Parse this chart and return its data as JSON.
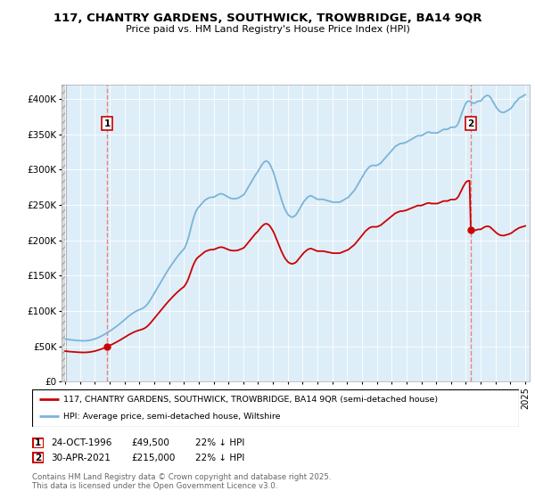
{
  "title": "117, CHANTRY GARDENS, SOUTHWICK, TROWBRIDGE, BA14 9QR",
  "subtitle": "Price paid vs. HM Land Registry's House Price Index (HPI)",
  "ylim": [
    0,
    420000
  ],
  "yticks": [
    0,
    50000,
    100000,
    150000,
    200000,
    250000,
    300000,
    350000,
    400000
  ],
  "ytick_labels": [
    "£0",
    "£50K",
    "£100K",
    "£150K",
    "£200K",
    "£250K",
    "£300K",
    "£350K",
    "£400K"
  ],
  "sale1_date": "24-OCT-1996",
  "sale1_price": 49500,
  "sale1_x": 1996.82,
  "sale1_label": "22% ↓ HPI",
  "sale2_date": "30-APR-2021",
  "sale2_price": 215000,
  "sale2_x": 2021.33,
  "sale2_label": "22% ↓ HPI",
  "hpi_color": "#7ab4d8",
  "property_color": "#cc0000",
  "vline_color": "#e87878",
  "background_color": "#ffffff",
  "chart_bg": "#ddeeff",
  "legend_label_property": "117, CHANTRY GARDENS, SOUTHWICK, TROWBRIDGE, BA14 9QR (semi-detached house)",
  "legend_label_hpi": "HPI: Average price, semi-detached house, Wiltshire",
  "footer": "Contains HM Land Registry data © Crown copyright and database right 2025.\nThis data is licensed under the Open Government Licence v3.0.",
  "hpi_data_monthly": [
    [
      1994.0,
      60500
    ],
    [
      1994.083,
      60200
    ],
    [
      1994.167,
      60000
    ],
    [
      1994.25,
      59700
    ],
    [
      1994.333,
      59400
    ],
    [
      1994.417,
      59200
    ],
    [
      1994.5,
      58900
    ],
    [
      1994.583,
      58700
    ],
    [
      1994.667,
      58500
    ],
    [
      1994.75,
      58400
    ],
    [
      1994.833,
      58300
    ],
    [
      1994.917,
      58200
    ],
    [
      1995.0,
      58100
    ],
    [
      1995.083,
      58000
    ],
    [
      1995.167,
      57900
    ],
    [
      1995.25,
      57800
    ],
    [
      1995.333,
      57900
    ],
    [
      1995.417,
      58000
    ],
    [
      1995.5,
      58200
    ],
    [
      1995.583,
      58400
    ],
    [
      1995.667,
      58700
    ],
    [
      1995.75,
      59100
    ],
    [
      1995.833,
      59500
    ],
    [
      1995.917,
      60000
    ],
    [
      1996.0,
      60600
    ],
    [
      1996.083,
      61200
    ],
    [
      1996.167,
      61900
    ],
    [
      1996.25,
      62700
    ],
    [
      1996.333,
      63500
    ],
    [
      1996.417,
      64400
    ],
    [
      1996.5,
      65300
    ],
    [
      1996.583,
      66200
    ],
    [
      1996.667,
      67200
    ],
    [
      1996.75,
      68200
    ],
    [
      1996.833,
      69300
    ],
    [
      1996.917,
      70400
    ],
    [
      1997.0,
      71500
    ],
    [
      1997.083,
      72700
    ],
    [
      1997.167,
      73900
    ],
    [
      1997.25,
      75100
    ],
    [
      1997.333,
      76400
    ],
    [
      1997.417,
      77700
    ],
    [
      1997.5,
      79000
    ],
    [
      1997.583,
      80400
    ],
    [
      1997.667,
      81800
    ],
    [
      1997.75,
      83200
    ],
    [
      1997.833,
      84700
    ],
    [
      1997.917,
      86200
    ],
    [
      1998.0,
      87700
    ],
    [
      1998.083,
      89200
    ],
    [
      1998.167,
      90700
    ],
    [
      1998.25,
      92200
    ],
    [
      1998.333,
      93600
    ],
    [
      1998.417,
      94900
    ],
    [
      1998.5,
      96200
    ],
    [
      1998.583,
      97400
    ],
    [
      1998.667,
      98500
    ],
    [
      1998.75,
      99500
    ],
    [
      1998.833,
      100400
    ],
    [
      1998.917,
      101200
    ],
    [
      1999.0,
      101900
    ],
    [
      1999.083,
      102600
    ],
    [
      1999.167,
      103400
    ],
    [
      1999.25,
      104300
    ],
    [
      1999.333,
      105500
    ],
    [
      1999.417,
      107000
    ],
    [
      1999.5,
      108800
    ],
    [
      1999.583,
      111000
    ],
    [
      1999.667,
      113500
    ],
    [
      1999.75,
      116200
    ],
    [
      1999.833,
      119100
    ],
    [
      1999.917,
      122100
    ],
    [
      2000.0,
      125100
    ],
    [
      2000.083,
      128100
    ],
    [
      2000.167,
      131100
    ],
    [
      2000.25,
      134100
    ],
    [
      2000.333,
      137100
    ],
    [
      2000.417,
      140100
    ],
    [
      2000.5,
      143100
    ],
    [
      2000.583,
      146100
    ],
    [
      2000.667,
      149000
    ],
    [
      2000.75,
      151900
    ],
    [
      2000.833,
      154700
    ],
    [
      2000.917,
      157500
    ],
    [
      2001.0,
      160200
    ],
    [
      2001.083,
      162900
    ],
    [
      2001.167,
      165500
    ],
    [
      2001.25,
      168100
    ],
    [
      2001.333,
      170600
    ],
    [
      2001.417,
      173000
    ],
    [
      2001.5,
      175400
    ],
    [
      2001.583,
      177700
    ],
    [
      2001.667,
      179900
    ],
    [
      2001.75,
      182000
    ],
    [
      2001.833,
      184000
    ],
    [
      2001.917,
      185900
    ],
    [
      2002.0,
      187700
    ],
    [
      2002.083,
      191000
    ],
    [
      2002.167,
      195000
    ],
    [
      2002.25,
      200000
    ],
    [
      2002.333,
      206000
    ],
    [
      2002.417,
      213000
    ],
    [
      2002.5,
      220000
    ],
    [
      2002.583,
      227000
    ],
    [
      2002.667,
      233000
    ],
    [
      2002.75,
      238000
    ],
    [
      2002.833,
      242000
    ],
    [
      2002.917,
      245000
    ],
    [
      2003.0,
      247000
    ],
    [
      2003.083,
      249000
    ],
    [
      2003.167,
      251000
    ],
    [
      2003.25,
      253000
    ],
    [
      2003.333,
      255000
    ],
    [
      2003.417,
      257000
    ],
    [
      2003.5,
      258000
    ],
    [
      2003.583,
      259000
    ],
    [
      2003.667,
      260000
    ],
    [
      2003.75,
      260500
    ],
    [
      2003.833,
      261000
    ],
    [
      2003.917,
      261000
    ],
    [
      2004.0,
      261000
    ],
    [
      2004.083,
      262000
    ],
    [
      2004.167,
      263000
    ],
    [
      2004.25,
      264000
    ],
    [
      2004.333,
      265000
    ],
    [
      2004.417,
      265500
    ],
    [
      2004.5,
      266000
    ],
    [
      2004.583,
      265500
    ],
    [
      2004.667,
      265000
    ],
    [
      2004.75,
      264000
    ],
    [
      2004.833,
      263000
    ],
    [
      2004.917,
      262000
    ],
    [
      2005.0,
      261000
    ],
    [
      2005.083,
      260000
    ],
    [
      2005.167,
      259500
    ],
    [
      2005.25,
      259000
    ],
    [
      2005.333,
      259000
    ],
    [
      2005.417,
      259000
    ],
    [
      2005.5,
      259000
    ],
    [
      2005.583,
      259500
    ],
    [
      2005.667,
      260000
    ],
    [
      2005.75,
      261000
    ],
    [
      2005.833,
      262000
    ],
    [
      2005.917,
      263000
    ],
    [
      2006.0,
      264000
    ],
    [
      2006.083,
      266000
    ],
    [
      2006.167,
      269000
    ],
    [
      2006.25,
      272000
    ],
    [
      2006.333,
      275000
    ],
    [
      2006.417,
      278000
    ],
    [
      2006.5,
      281000
    ],
    [
      2006.583,
      284000
    ],
    [
      2006.667,
      287000
    ],
    [
      2006.75,
      290000
    ],
    [
      2006.833,
      293000
    ],
    [
      2006.917,
      295000
    ],
    [
      2007.0,
      298000
    ],
    [
      2007.083,
      301000
    ],
    [
      2007.167,
      304000
    ],
    [
      2007.25,
      307000
    ],
    [
      2007.333,
      309000
    ],
    [
      2007.417,
      311000
    ],
    [
      2007.5,
      312000
    ],
    [
      2007.583,
      312000
    ],
    [
      2007.667,
      311000
    ],
    [
      2007.75,
      309000
    ],
    [
      2007.833,
      306000
    ],
    [
      2007.917,
      302000
    ],
    [
      2008.0,
      298000
    ],
    [
      2008.083,
      293000
    ],
    [
      2008.167,
      287000
    ],
    [
      2008.25,
      281000
    ],
    [
      2008.333,
      275000
    ],
    [
      2008.417,
      269000
    ],
    [
      2008.5,
      263000
    ],
    [
      2008.583,
      257000
    ],
    [
      2008.667,
      252000
    ],
    [
      2008.75,
      247000
    ],
    [
      2008.833,
      243000
    ],
    [
      2008.917,
      240000
    ],
    [
      2009.0,
      237000
    ],
    [
      2009.083,
      235000
    ],
    [
      2009.167,
      234000
    ],
    [
      2009.25,
      233000
    ],
    [
      2009.333,
      233000
    ],
    [
      2009.417,
      234000
    ],
    [
      2009.5,
      235000
    ],
    [
      2009.583,
      237000
    ],
    [
      2009.667,
      240000
    ],
    [
      2009.75,
      243000
    ],
    [
      2009.833,
      246000
    ],
    [
      2009.917,
      249000
    ],
    [
      2010.0,
      252000
    ],
    [
      2010.083,
      255000
    ],
    [
      2010.167,
      257000
    ],
    [
      2010.25,
      259000
    ],
    [
      2010.333,
      261000
    ],
    [
      2010.417,
      262000
    ],
    [
      2010.5,
      263000
    ],
    [
      2010.583,
      263000
    ],
    [
      2010.667,
      262000
    ],
    [
      2010.75,
      261000
    ],
    [
      2010.833,
      260000
    ],
    [
      2010.917,
      259000
    ],
    [
      2011.0,
      258000
    ],
    [
      2011.083,
      258000
    ],
    [
      2011.167,
      258000
    ],
    [
      2011.25,
      258000
    ],
    [
      2011.333,
      258000
    ],
    [
      2011.417,
      258000
    ],
    [
      2011.5,
      257000
    ],
    [
      2011.583,
      257000
    ],
    [
      2011.667,
      256000
    ],
    [
      2011.75,
      256000
    ],
    [
      2011.833,
      255000
    ],
    [
      2011.917,
      255000
    ],
    [
      2012.0,
      254000
    ],
    [
      2012.083,
      254000
    ],
    [
      2012.167,
      254000
    ],
    [
      2012.25,
      254000
    ],
    [
      2012.333,
      254000
    ],
    [
      2012.417,
      254000
    ],
    [
      2012.5,
      254000
    ],
    [
      2012.583,
      255000
    ],
    [
      2012.667,
      256000
    ],
    [
      2012.75,
      257000
    ],
    [
      2012.833,
      258000
    ],
    [
      2012.917,
      259000
    ],
    [
      2013.0,
      260000
    ],
    [
      2013.083,
      261000
    ],
    [
      2013.167,
      263000
    ],
    [
      2013.25,
      265000
    ],
    [
      2013.333,
      267000
    ],
    [
      2013.417,
      269000
    ],
    [
      2013.5,
      271000
    ],
    [
      2013.583,
      274000
    ],
    [
      2013.667,
      277000
    ],
    [
      2013.75,
      280000
    ],
    [
      2013.833,
      283000
    ],
    [
      2013.917,
      286000
    ],
    [
      2014.0,
      289000
    ],
    [
      2014.083,
      292000
    ],
    [
      2014.167,
      295000
    ],
    [
      2014.25,
      298000
    ],
    [
      2014.333,
      300000
    ],
    [
      2014.417,
      302000
    ],
    [
      2014.5,
      304000
    ],
    [
      2014.583,
      305000
    ],
    [
      2014.667,
      306000
    ],
    [
      2014.75,
      306000
    ],
    [
      2014.833,
      306000
    ],
    [
      2014.917,
      306000
    ],
    [
      2015.0,
      306000
    ],
    [
      2015.083,
      307000
    ],
    [
      2015.167,
      308000
    ],
    [
      2015.25,
      309000
    ],
    [
      2015.333,
      311000
    ],
    [
      2015.417,
      313000
    ],
    [
      2015.5,
      315000
    ],
    [
      2015.583,
      317000
    ],
    [
      2015.667,
      319000
    ],
    [
      2015.75,
      321000
    ],
    [
      2015.833,
      323000
    ],
    [
      2015.917,
      325000
    ],
    [
      2016.0,
      327000
    ],
    [
      2016.083,
      329000
    ],
    [
      2016.167,
      331000
    ],
    [
      2016.25,
      333000
    ],
    [
      2016.333,
      334000
    ],
    [
      2016.417,
      335000
    ],
    [
      2016.5,
      336000
    ],
    [
      2016.583,
      337000
    ],
    [
      2016.667,
      337000
    ],
    [
      2016.75,
      337000
    ],
    [
      2016.833,
      338000
    ],
    [
      2016.917,
      338000
    ],
    [
      2017.0,
      339000
    ],
    [
      2017.083,
      340000
    ],
    [
      2017.167,
      341000
    ],
    [
      2017.25,
      342000
    ],
    [
      2017.333,
      343000
    ],
    [
      2017.417,
      344000
    ],
    [
      2017.5,
      345000
    ],
    [
      2017.583,
      346000
    ],
    [
      2017.667,
      347000
    ],
    [
      2017.75,
      348000
    ],
    [
      2017.833,
      348000
    ],
    [
      2017.917,
      348000
    ],
    [
      2018.0,
      348000
    ],
    [
      2018.083,
      349000
    ],
    [
      2018.167,
      350000
    ],
    [
      2018.25,
      351000
    ],
    [
      2018.333,
      352000
    ],
    [
      2018.417,
      353000
    ],
    [
      2018.5,
      353000
    ],
    [
      2018.583,
      353000
    ],
    [
      2018.667,
      352000
    ],
    [
      2018.75,
      352000
    ],
    [
      2018.833,
      352000
    ],
    [
      2018.917,
      352000
    ],
    [
      2019.0,
      352000
    ],
    [
      2019.083,
      352000
    ],
    [
      2019.167,
      353000
    ],
    [
      2019.25,
      354000
    ],
    [
      2019.333,
      355000
    ],
    [
      2019.417,
      356000
    ],
    [
      2019.5,
      357000
    ],
    [
      2019.583,
      357000
    ],
    [
      2019.667,
      357000
    ],
    [
      2019.75,
      357000
    ],
    [
      2019.833,
      358000
    ],
    [
      2019.917,
      359000
    ],
    [
      2020.0,
      360000
    ],
    [
      2020.083,
      360000
    ],
    [
      2020.167,
      360000
    ],
    [
      2020.25,
      360000
    ],
    [
      2020.333,
      361000
    ],
    [
      2020.417,
      363000
    ],
    [
      2020.5,
      366000
    ],
    [
      2020.583,
      371000
    ],
    [
      2020.667,
      376000
    ],
    [
      2020.75,
      381000
    ],
    [
      2020.833,
      386000
    ],
    [
      2020.917,
      390000
    ],
    [
      2021.0,
      394000
    ],
    [
      2021.083,
      396000
    ],
    [
      2021.167,
      397000
    ],
    [
      2021.25,
      397000
    ],
    [
      2021.333,
      396000
    ],
    [
      2021.417,
      395000
    ],
    [
      2021.5,
      394000
    ],
    [
      2021.583,
      394000
    ],
    [
      2021.667,
      395000
    ],
    [
      2021.75,
      396000
    ],
    [
      2021.833,
      397000
    ],
    [
      2021.917,
      397000
    ],
    [
      2022.0,
      397000
    ],
    [
      2022.083,
      399000
    ],
    [
      2022.167,
      401000
    ],
    [
      2022.25,
      403000
    ],
    [
      2022.333,
      404000
    ],
    [
      2022.417,
      405000
    ],
    [
      2022.5,
      405000
    ],
    [
      2022.583,
      404000
    ],
    [
      2022.667,
      402000
    ],
    [
      2022.75,
      399000
    ],
    [
      2022.833,
      396000
    ],
    [
      2022.917,
      393000
    ],
    [
      2023.0,
      390000
    ],
    [
      2023.083,
      387000
    ],
    [
      2023.167,
      385000
    ],
    [
      2023.25,
      383000
    ],
    [
      2023.333,
      382000
    ],
    [
      2023.417,
      381000
    ],
    [
      2023.5,
      381000
    ],
    [
      2023.583,
      381000
    ],
    [
      2023.667,
      382000
    ],
    [
      2023.75,
      383000
    ],
    [
      2023.833,
      384000
    ],
    [
      2023.917,
      385000
    ],
    [
      2024.0,
      386000
    ],
    [
      2024.083,
      388000
    ],
    [
      2024.167,
      390000
    ],
    [
      2024.25,
      393000
    ],
    [
      2024.333,
      395000
    ],
    [
      2024.417,
      397000
    ],
    [
      2024.5,
      399000
    ],
    [
      2024.583,
      401000
    ],
    [
      2024.667,
      402000
    ],
    [
      2024.75,
      403000
    ],
    [
      2024.833,
      404000
    ],
    [
      2024.917,
      405000
    ],
    [
      2025.0,
      406000
    ]
  ]
}
